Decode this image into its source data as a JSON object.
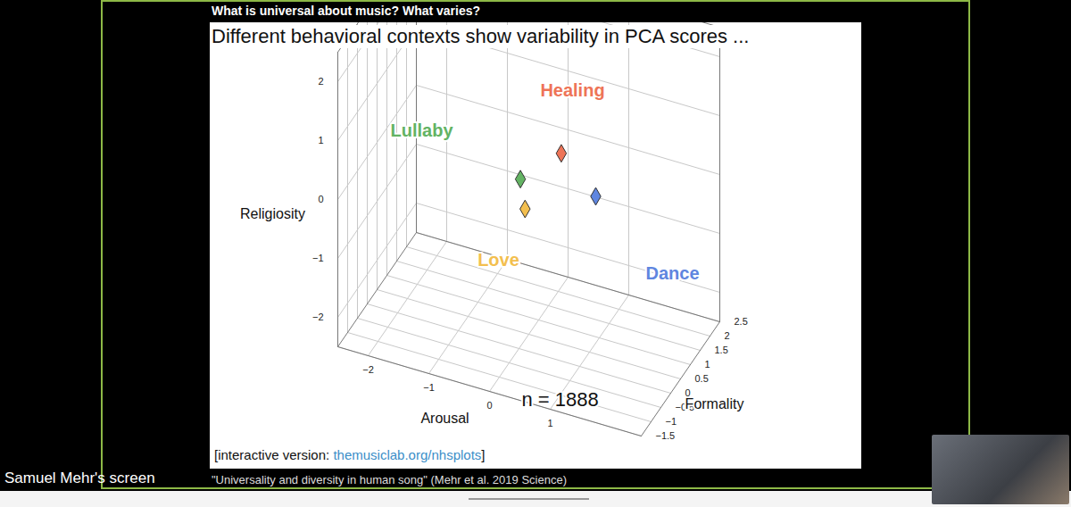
{
  "screen": {
    "header": "What is universal about music? What varies?",
    "presenter": "Samuel Mehr's screen",
    "caption": "\"Universality and diversity in human song\" (Mehr et al. 2019 Science)"
  },
  "slide": {
    "link_prefix": "[interactive version: ",
    "link": "themusiclab.org/nhsplots",
    "link_suffix": "]"
  },
  "chart_data": {
    "type": "scatter3d",
    "title": "Different behavioral contexts show variability in PCA scores ...",
    "xlabel": "Arousal",
    "ylabel": "Formality",
    "zlabel": "Religiosity",
    "xlim": [
      -2.5,
      2.5
    ],
    "xticks": [
      -2,
      -1,
      0,
      1
    ],
    "ylim": [
      -1.5,
      2.5
    ],
    "yticks": [
      -1.5,
      -1,
      -0.5,
      0,
      0.5,
      1,
      1.5,
      2,
      2.5
    ],
    "zlim": [
      -2.5,
      2.5
    ],
    "zticks": [
      -2,
      -1,
      0,
      1,
      2
    ],
    "grid": true,
    "marker": "diamond",
    "annotations": [
      "n = 1888"
    ],
    "series": [
      {
        "name": "Healing",
        "color": "#ee7457",
        "x": [
          0.6
        ],
        "y": [
          0.3
        ],
        "z": [
          0.85
        ]
      },
      {
        "name": "Lullaby",
        "color": "#63b363",
        "x": [
          -0.3
        ],
        "y": [
          1.0
        ],
        "z": [
          -0.2
        ]
      },
      {
        "name": "Love",
        "color": "#f3bf4f",
        "x": [
          0.1
        ],
        "y": [
          0
        ],
        "z": [
          -0.1
        ]
      },
      {
        "name": "Dance",
        "color": "#5f86e0",
        "x": [
          1.2
        ],
        "y": [
          0.2
        ],
        "z": [
          0.35
        ]
      }
    ]
  }
}
